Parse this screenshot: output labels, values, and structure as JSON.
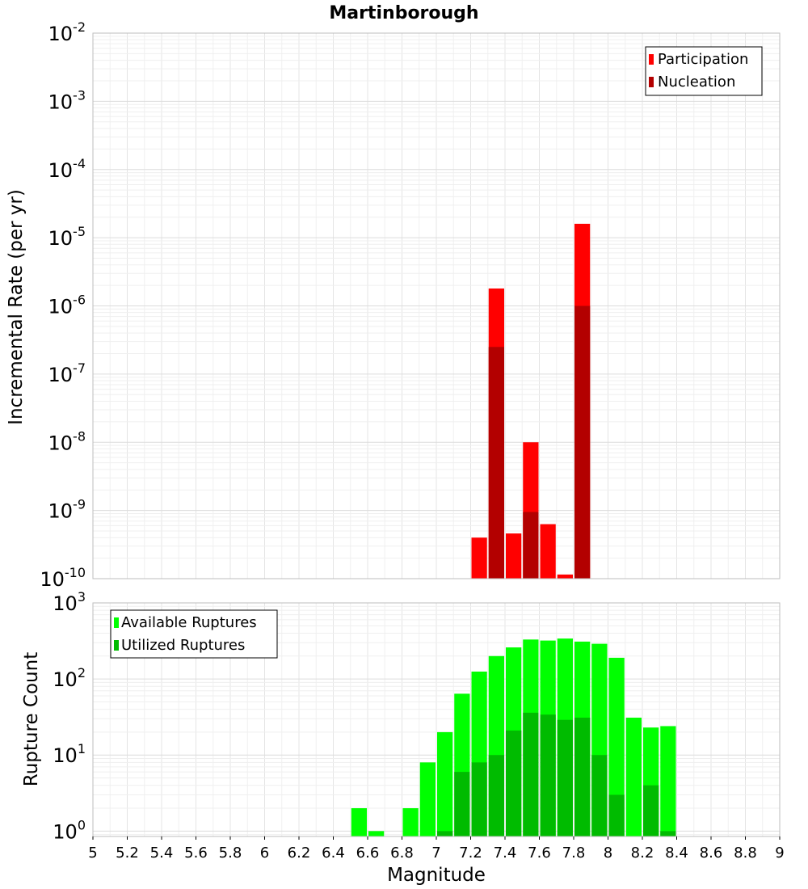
{
  "chart_data": [
    {
      "type": "bar",
      "title": "Martinborough",
      "xlabel": "",
      "ylabel": "Incremental Rate (per yr)",
      "yscale": "log",
      "ylim": [
        1e-10,
        0.01
      ],
      "xlim": [
        5,
        9
      ],
      "grid": true,
      "legend_position": "top-right",
      "y_ticks": [
        "10-2",
        "10-3",
        "10-4",
        "10-5",
        "10-6",
        "10-7",
        "10-8",
        "10-9",
        "10-10"
      ],
      "series": [
        {
          "name": "Participation",
          "color": "#ff0000",
          "x": [
            7.25,
            7.35,
            7.45,
            7.55,
            7.65,
            7.75,
            7.85
          ],
          "values": [
            4e-10,
            1.8e-06,
            4.6e-10,
            1e-08,
            6.3e-10,
            1.15e-10,
            1.6e-05
          ]
        },
        {
          "name": "Nucleation",
          "color": "#b30000",
          "x": [
            7.35,
            7.55,
            7.85
          ],
          "values": [
            2.5e-07,
            9.5e-10,
            1e-06
          ]
        }
      ]
    },
    {
      "type": "bar",
      "title": "",
      "xlabel": "Magnitude",
      "ylabel": "Rupture Count",
      "yscale": "log",
      "ylim": [
        0.85,
        1000
      ],
      "xlim": [
        5,
        9
      ],
      "grid": true,
      "legend_position": "top-left",
      "x_ticks": [
        "5",
        "5.2",
        "5.4",
        "5.6",
        "5.8",
        "6",
        "6.2",
        "6.4",
        "6.6",
        "6.8",
        "7",
        "7.2",
        "7.4",
        "7.6",
        "7.8",
        "8",
        "8.2",
        "8.4",
        "8.6",
        "8.8",
        "9"
      ],
      "y_ticks": [
        "10^3",
        "10^2",
        "10^1",
        "10^0"
      ],
      "series": [
        {
          "name": "Available Ruptures",
          "color": "#00ff00",
          "x": [
            6.55,
            6.65,
            6.85,
            6.95,
            7.05,
            7.15,
            7.25,
            7.35,
            7.45,
            7.55,
            7.65,
            7.75,
            7.85,
            7.95,
            8.05,
            8.15,
            8.25,
            8.35
          ],
          "values": [
            2,
            1,
            2,
            8,
            20,
            64,
            125,
            200,
            260,
            330,
            320,
            340,
            310,
            290,
            190,
            31,
            23,
            24
          ]
        },
        {
          "name": "Utilized Ruptures",
          "color": "#00bb00",
          "x": [
            7.05,
            7.15,
            7.25,
            7.35,
            7.45,
            7.55,
            7.65,
            7.75,
            7.85,
            7.95,
            8.05,
            8.25,
            8.35
          ],
          "values": [
            1,
            6,
            8,
            10,
            21,
            36,
            34,
            29,
            31,
            10,
            3,
            4,
            1
          ]
        }
      ]
    }
  ]
}
